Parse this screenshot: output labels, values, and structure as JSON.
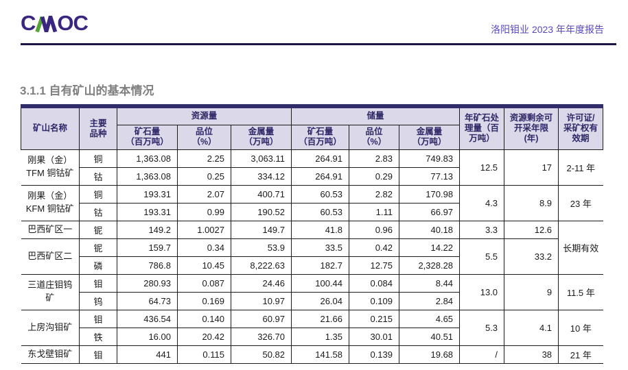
{
  "header": {
    "logo": {
      "c": "C",
      "oc": "OC"
    },
    "report_title": "洛阳钼业 2023 年年度报告"
  },
  "section_title": "3.1.1 自有矿山的基本情况",
  "colors": {
    "logo_indigo": "#3a2580",
    "logo_green": "#57a33a",
    "report_title_purple": "#5849bd",
    "rule_navy": "#1a1446",
    "section_title_gray": "#7f7f7f",
    "table_header_bg": "#dbd8ea",
    "table_header_text": "#2d2766",
    "table_top_bar": "#322d6a",
    "table_border": "#1a1a1a"
  },
  "table": {
    "header": {
      "mine_name": "矿山名称",
      "main_variety": "主要\n品种",
      "resources_group": "资源量",
      "reserves_group": "储量",
      "sub": {
        "ore": "矿石量\n（百万吨）",
        "grade": "品位\n（%）",
        "metal": "金属量\n（万吨）"
      },
      "annual_processing": "年矿石处\n理量（百\n万吨）",
      "remaining_years": "资源剩余可\n开采年限\n(年)",
      "license": "许可证/\n采矿权有\n效期"
    },
    "body": [
      [
        {
          "t": "刚果（金）\nTFM 铜钴矿",
          "rs": 2,
          "c": "name"
        },
        {
          "t": "铜",
          "c": "var"
        },
        {
          "t": "1,363.08"
        },
        {
          "t": "2.25"
        },
        {
          "t": "3,063.11"
        },
        {
          "t": "264.91"
        },
        {
          "t": "2.83"
        },
        {
          "t": "749.83"
        },
        {
          "t": "12.5",
          "rs": 2
        },
        {
          "t": "17",
          "rs": 2
        },
        {
          "t": "2-11 年",
          "rs": 2,
          "c": "lic"
        }
      ],
      [
        {
          "t": "钴",
          "c": "var"
        },
        {
          "t": "1,363.08"
        },
        {
          "t": "0.25"
        },
        {
          "t": "334.12"
        },
        {
          "t": "264.91"
        },
        {
          "t": "0.29"
        },
        {
          "t": "77.13"
        }
      ],
      [
        {
          "t": "刚果（金）\nKFM 铜钴矿",
          "rs": 2,
          "c": "name"
        },
        {
          "t": "铜",
          "c": "var"
        },
        {
          "t": "193.31"
        },
        {
          "t": "2.07"
        },
        {
          "t": "400.71"
        },
        {
          "t": "60.53"
        },
        {
          "t": "2.82"
        },
        {
          "t": "170.98"
        },
        {
          "t": "4.3",
          "rs": 2
        },
        {
          "t": "8.9",
          "rs": 2
        },
        {
          "t": "23 年",
          "rs": 2,
          "c": "lic"
        }
      ],
      [
        {
          "t": "钴",
          "c": "var"
        },
        {
          "t": "193.31"
        },
        {
          "t": "0.99"
        },
        {
          "t": "190.52"
        },
        {
          "t": "60.53"
        },
        {
          "t": "1.11"
        },
        {
          "t": "66.97"
        }
      ],
      [
        {
          "t": "巴西矿区一",
          "c": "name"
        },
        {
          "t": "铌",
          "c": "var"
        },
        {
          "t": "149.2"
        },
        {
          "t": "1.0027"
        },
        {
          "t": "149.7"
        },
        {
          "t": "41.8"
        },
        {
          "t": "0.96"
        },
        {
          "t": "40.18"
        },
        {
          "t": "3.3"
        },
        {
          "t": "12.6"
        },
        {
          "t": "长期有效",
          "rs": 3,
          "c": "lic"
        }
      ],
      [
        {
          "t": "巴西矿区二",
          "rs": 2,
          "c": "name"
        },
        {
          "t": "铌",
          "c": "var"
        },
        {
          "t": "159.7"
        },
        {
          "t": "0.34"
        },
        {
          "t": "53.9"
        },
        {
          "t": "33.5"
        },
        {
          "t": "0.42"
        },
        {
          "t": "14.22"
        },
        {
          "t": "5.5",
          "rs": 2
        },
        {
          "t": "33.2",
          "rs": 2
        }
      ],
      [
        {
          "t": "磷",
          "c": "var"
        },
        {
          "t": "786.8"
        },
        {
          "t": "10.45"
        },
        {
          "t": "8,222.63"
        },
        {
          "t": "182.7"
        },
        {
          "t": "12.75"
        },
        {
          "t": "2,328.28"
        }
      ],
      [
        {
          "t": "三道庄钼钨\n矿",
          "rs": 2,
          "c": "name"
        },
        {
          "t": "钼",
          "c": "var"
        },
        {
          "t": "280.93"
        },
        {
          "t": "0.087"
        },
        {
          "t": "24.46"
        },
        {
          "t": "100.44"
        },
        {
          "t": "0.084"
        },
        {
          "t": "8.44"
        },
        {
          "t": "13.0",
          "rs": 2
        },
        {
          "t": "9",
          "rs": 2
        },
        {
          "t": "11.5 年",
          "rs": 2,
          "c": "lic"
        }
      ],
      [
        {
          "t": "钨",
          "c": "var"
        },
        {
          "t": "64.73"
        },
        {
          "t": "0.169"
        },
        {
          "t": "10.97"
        },
        {
          "t": "26.04"
        },
        {
          "t": "0.109"
        },
        {
          "t": "2.84"
        }
      ],
      [
        {
          "t": "上房沟钼矿",
          "rs": 2,
          "c": "name"
        },
        {
          "t": "钼",
          "c": "var"
        },
        {
          "t": "436.54"
        },
        {
          "t": "0.140"
        },
        {
          "t": "60.97"
        },
        {
          "t": "21.66"
        },
        {
          "t": "0.215"
        },
        {
          "t": "4.65"
        },
        {
          "t": "5.3",
          "rs": 2
        },
        {
          "t": "4.1",
          "rs": 2
        },
        {
          "t": "10 年",
          "rs": 2,
          "c": "lic"
        }
      ],
      [
        {
          "t": "铁",
          "c": "var"
        },
        {
          "t": "16.00"
        },
        {
          "t": "20.42"
        },
        {
          "t": "326.70"
        },
        {
          "t": "1.35"
        },
        {
          "t": "30.01"
        },
        {
          "t": "40.51"
        }
      ],
      [
        {
          "t": "东戈壁钼矿",
          "c": "name"
        },
        {
          "t": "钼",
          "c": "var"
        },
        {
          "t": "441"
        },
        {
          "t": "0.115"
        },
        {
          "t": "50.82"
        },
        {
          "t": "141.58"
        },
        {
          "t": "0.139"
        },
        {
          "t": "19.68"
        },
        {
          "t": "/"
        },
        {
          "t": "38"
        },
        {
          "t": "21 年",
          "c": "lic"
        }
      ]
    ]
  }
}
